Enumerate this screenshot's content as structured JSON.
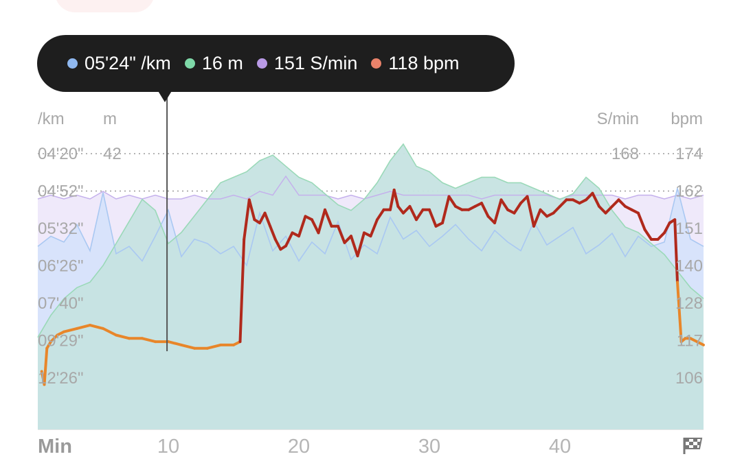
{
  "tooltip": {
    "items": [
      {
        "value": "05'24\" /km",
        "color": "#8fb8f0"
      },
      {
        "value": "16 m",
        "color": "#7ed8a8"
      },
      {
        "value": "151 S/min",
        "color": "#b99ae6"
      },
      {
        "value": "118 bpm",
        "color": "#e9826a"
      }
    ]
  },
  "chart_data": {
    "type": "line",
    "x_axis": {
      "unit": "Min",
      "ticks": [
        "10",
        "20",
        "30",
        "40"
      ],
      "tick_values": [
        10,
        20,
        30,
        40
      ],
      "range": [
        0,
        51
      ],
      "end_icon": "checkered-flag-icon"
    },
    "cursor_x": 9.9,
    "left_axes": {
      "pace": {
        "unit": "/km",
        "ticks": [
          "04'20\"",
          "04'52\"",
          "05'32\"",
          "06'26\"",
          "07'40\"",
          "09'29\"",
          "12'26\""
        ]
      },
      "altitude": {
        "unit": "m",
        "ticks": [
          "42"
        ]
      }
    },
    "right_axes": {
      "cadence": {
        "unit": "S/min",
        "ticks": [
          "168"
        ]
      },
      "heart_rate": {
        "unit": "bpm",
        "ticks": [
          "174",
          "162",
          "151",
          "140",
          "128",
          "117",
          "106"
        ],
        "tick_values": [
          174,
          162,
          151,
          140,
          128,
          117,
          106
        ],
        "range": [
          92,
          174
        ]
      }
    },
    "series": [
      {
        "name": "pace",
        "color": "#8fb8f0",
        "axis": "pace",
        "x": [
          0,
          1,
          2,
          3,
          4,
          5,
          6,
          7,
          8,
          9,
          10,
          11,
          12,
          13,
          14,
          15,
          16,
          17,
          18,
          19,
          20,
          21,
          22,
          23,
          24,
          25,
          26,
          27,
          28,
          29,
          30,
          31,
          32,
          33,
          34,
          35,
          36,
          37,
          38,
          39,
          40,
          41,
          42,
          43,
          44,
          45,
          46,
          47,
          48,
          49,
          50,
          51
        ],
        "y": [
          0.55,
          0.62,
          0.58,
          0.7,
          0.52,
          0.92,
          0.5,
          0.55,
          0.45,
          0.62,
          0.8,
          0.48,
          0.6,
          0.57,
          0.5,
          0.55,
          0.42,
          0.78,
          0.52,
          0.62,
          0.45,
          0.58,
          0.5,
          0.72,
          0.46,
          0.56,
          0.5,
          0.75,
          0.6,
          0.66,
          0.55,
          0.62,
          0.7,
          0.6,
          0.52,
          0.66,
          0.58,
          0.52,
          0.72,
          0.56,
          0.62,
          0.68,
          0.5,
          0.56,
          0.64,
          0.48,
          0.62,
          0.55,
          0.58,
          0.95,
          0.6,
          0.55
        ]
      },
      {
        "name": "altitude",
        "color": "#7ed8a8",
        "axis": "altitude",
        "x": [
          0,
          1,
          2,
          3,
          4,
          5,
          6,
          7,
          8,
          9,
          10,
          11,
          12,
          13,
          14,
          15,
          16,
          17,
          18,
          19,
          20,
          21,
          22,
          23,
          24,
          25,
          26,
          27,
          28,
          29,
          30,
          31,
          32,
          33,
          34,
          35,
          36,
          37,
          38,
          39,
          40,
          41,
          42,
          43,
          44,
          45,
          46,
          47,
          48,
          49,
          50,
          51
        ],
        "y": [
          5,
          9,
          12,
          14,
          15,
          18,
          22,
          26,
          30,
          28,
          22,
          24,
          27,
          30,
          33,
          34,
          35,
          37,
          38,
          36,
          34,
          33,
          31,
          29,
          28,
          30,
          33,
          37,
          40,
          36,
          35,
          33,
          32,
          33,
          34,
          34,
          33,
          33,
          32,
          31,
          30,
          31,
          34,
          32,
          28,
          25,
          24,
          22,
          20,
          17,
          14,
          12
        ]
      },
      {
        "name": "cadence",
        "color": "#b99ae6",
        "axis": "cadence",
        "x": [
          0,
          1,
          2,
          3,
          4,
          5,
          6,
          7,
          8,
          9,
          10,
          11,
          12,
          13,
          14,
          15,
          16,
          17,
          18,
          19,
          20,
          21,
          22,
          23,
          24,
          25,
          26,
          27,
          28,
          29,
          30,
          31,
          32,
          33,
          34,
          35,
          36,
          37,
          38,
          39,
          40,
          41,
          42,
          43,
          44,
          45,
          46,
          47,
          48,
          49,
          50,
          51
        ],
        "y": [
          158,
          159,
          158,
          159,
          158,
          160,
          158,
          159,
          158,
          159,
          158,
          158,
          159,
          158,
          158,
          159,
          158,
          160,
          159,
          164,
          159,
          159,
          159,
          158,
          159,
          158,
          159,
          160,
          159,
          159,
          159,
          159,
          159,
          159,
          158,
          159,
          159,
          159,
          159,
          159,
          158,
          159,
          159,
          159,
          159,
          158,
          159,
          159,
          158,
          159,
          158,
          159
        ]
      },
      {
        "name": "heart_rate",
        "color": "#b0291c",
        "axis": "heart_rate",
        "x": [
          0.3,
          0.5,
          0.7,
          1,
          1.5,
          2,
          3,
          4,
          5,
          6,
          7,
          8,
          9,
          10,
          11,
          12,
          13,
          14,
          15,
          15.5,
          15.8,
          16.2,
          16.6,
          17,
          17.4,
          17.8,
          18.2,
          18.6,
          19,
          19.5,
          20,
          20.5,
          21,
          21.5,
          22,
          22.5,
          23,
          23.5,
          24,
          24.5,
          25,
          25.5,
          26,
          26.5,
          27,
          27.3,
          27.6,
          28,
          28.5,
          29,
          29.5,
          30,
          30.5,
          31,
          31.5,
          32,
          32.5,
          33,
          33.5,
          34,
          34.5,
          35,
          35.5,
          36,
          36.5,
          37,
          37.5,
          38,
          38.5,
          39,
          39.5,
          40,
          40.5,
          41,
          41.5,
          42,
          42.5,
          43,
          43.5,
          44,
          44.5,
          45,
          45.5,
          46,
          46.5,
          47,
          47.5,
          48,
          48.4,
          48.8,
          49,
          49.3,
          49.6,
          50,
          50.5,
          51
        ],
        "y": [
          108,
          104,
          115,
          117,
          119,
          120,
          121,
          122,
          121,
          119,
          118,
          118,
          117,
          117,
          116,
          115,
          115,
          116,
          116,
          117,
          148,
          160,
          154,
          153,
          156,
          152,
          148,
          145,
          146,
          150,
          149,
          155,
          154,
          150,
          157,
          152,
          152,
          147,
          149,
          143,
          150,
          149,
          154,
          157,
          157,
          163,
          158,
          156,
          158,
          154,
          157,
          157,
          152,
          153,
          161,
          158,
          157,
          157,
          158,
          159,
          155,
          153,
          160,
          157,
          156,
          159,
          161,
          152,
          157,
          155,
          156,
          158,
          160,
          160,
          159,
          160,
          162,
          158,
          156,
          158,
          160,
          158,
          157,
          156,
          151,
          148,
          148,
          150,
          153,
          154,
          135,
          117,
          118,
          118,
          117,
          116
        ]
      }
    ],
    "title": ""
  }
}
